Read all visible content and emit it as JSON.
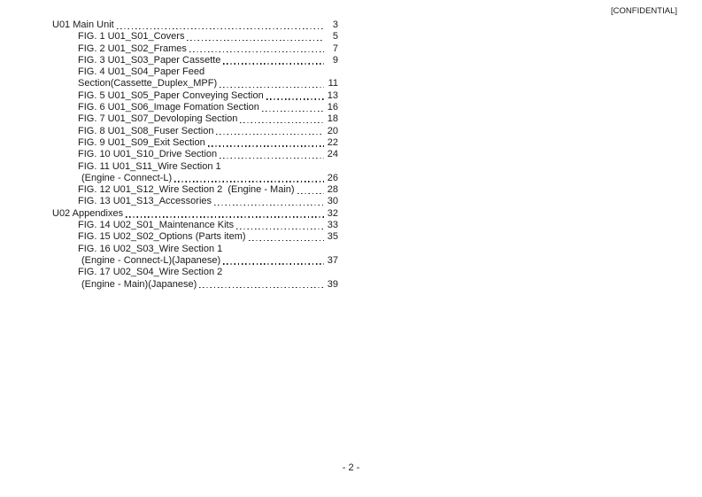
{
  "colors": {
    "text": "#1a1a1a",
    "background": "#ffffff"
  },
  "header": {
    "confidential_label": "[CONFIDENTIAL]"
  },
  "toc": {
    "sections": [
      {
        "title": "U01 Main Unit",
        "page": "3",
        "figures": [
          {
            "line1": "FIG. 1 U01_S01_Covers",
            "page": "5"
          },
          {
            "line1": "FIG. 2 U01_S02_Frames",
            "page": "7"
          },
          {
            "line1": "FIG. 3 U01_S03_Paper Cassette",
            "page": "9"
          },
          {
            "line1": "FIG. 4 U01_S04_Paper Feed",
            "line2": "Section(Cassette_Duplex_MPF)",
            "page": "11"
          },
          {
            "line1": "FIG. 5 U01_S05_Paper Conveying Section",
            "page": "13"
          },
          {
            "line1": "FIG. 6 U01_S06_Image Fomation Section",
            "page": "16"
          },
          {
            "line1": "FIG. 7 U01_S07_Devoloping Section",
            "page": "18"
          },
          {
            "line1": "FIG. 8 U01_S08_Fuser Section",
            "page": "20"
          },
          {
            "line1": "FIG. 9 U01_S09_Exit Section",
            "page": "22"
          },
          {
            "line1": "FIG. 10 U01_S10_Drive Section",
            "page": "24"
          },
          {
            "line1": "FIG. 11 U01_S11_Wire Section 1",
            "line2": "(Engine - Connect-L)",
            "page": "26"
          },
          {
            "line1": "FIG. 12 U01_S12_Wire Section 2  (Engine - Main)",
            "page": "28"
          },
          {
            "line1": "FIG. 13 U01_S13_Accessories",
            "page": "30"
          }
        ]
      },
      {
        "title": "U02 Appendixes",
        "page": "32",
        "figures": [
          {
            "line1": "FIG. 14 U02_S01_Maintenance Kits",
            "page": "33"
          },
          {
            "line1": "FIG. 15 U02_S02_Options (Parts item)",
            "page": "35"
          },
          {
            "line1": "FIG. 16 U02_S03_Wire Section 1",
            "line2": "(Engine - Connect-L)(Japanese)",
            "page": "37"
          },
          {
            "line1": "FIG. 17 U02_S04_Wire Section 2",
            "line2": "(Engine - Main)(Japanese)",
            "page": "39"
          }
        ]
      }
    ]
  },
  "footer": {
    "page_label": "- 2 -"
  }
}
